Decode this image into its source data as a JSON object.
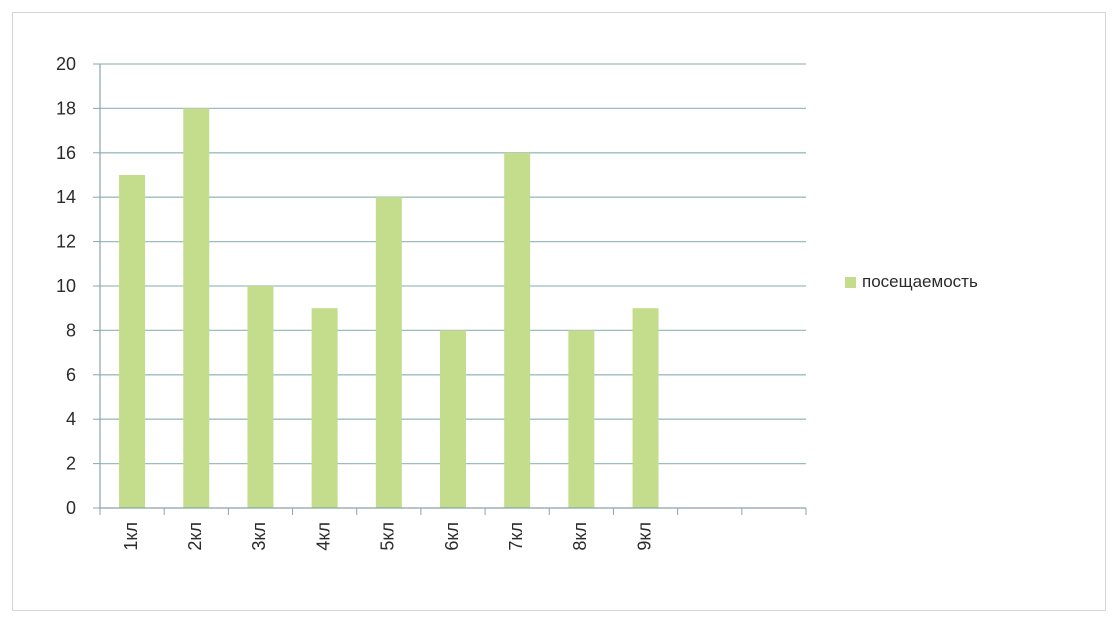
{
  "chart_data": {
    "type": "bar",
    "title": "",
    "xlabel": "",
    "ylabel": "",
    "categories": [
      "1кл",
      "2кл",
      "3кл",
      "4кл",
      "5кл",
      "6кл",
      "7кл",
      "8кл",
      "9кл",
      "",
      ""
    ],
    "series": [
      {
        "name": "посещаемость",
        "values": [
          15,
          18,
          10,
          9,
          14,
          8,
          16,
          8,
          9,
          null,
          null
        ]
      }
    ],
    "ylim": [
      0,
      20
    ],
    "yticks": [
      "0",
      "2",
      "4",
      "6",
      "8",
      "10",
      "12",
      "14",
      "16",
      "18",
      "20"
    ],
    "grid": true,
    "legend_position": "right",
    "colors": {
      "bar": "#c3dd8c",
      "gridline": "#9dbcbf",
      "axis": "#8aa5a8",
      "text": "#2b2b2b"
    }
  }
}
